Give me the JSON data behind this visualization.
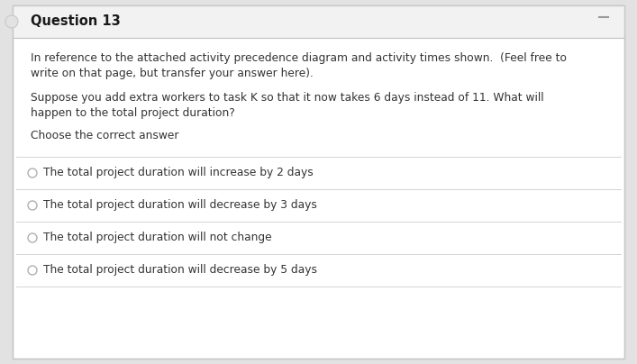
{
  "title": "Question 13",
  "body_text_1": "In reference to the attached activity precedence diagram and activity times shown.  (Feel free to\nwrite on that page, but transfer your answer here).",
  "body_text_2": "Suppose you add extra workers to task K so that it now takes 6 days instead of 11. What will\nhappen to the total project duration?",
  "body_text_3": "Choose the correct answer",
  "options": [
    "The total project duration will increase by 2 days",
    "The total project duration will decrease by 3 days",
    "The total project duration will not change",
    "The total project duration will decrease by 5 days"
  ],
  "bg_outer": "#e2e2e2",
  "bg_inner": "#ffffff",
  "bg_header": "#f2f2f2",
  "title_color": "#1a1a1a",
  "text_color": "#333333",
  "border_color": "#c8c8c8",
  "header_border_color": "#c0c0c0",
  "option_border_color": "#d4d4d4",
  "radio_color": "#b0b0b0",
  "minimize_color": "#999999",
  "title_fontsize": 10.5,
  "body_fontsize": 8.8,
  "option_fontsize": 8.8
}
